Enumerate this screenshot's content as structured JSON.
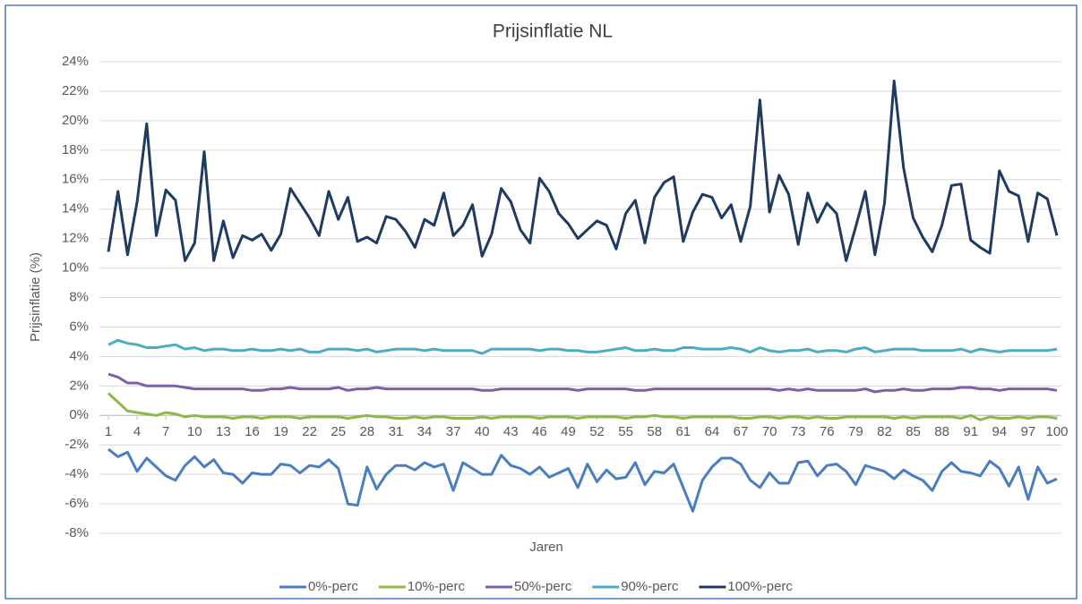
{
  "chart_data": {
    "type": "line",
    "title": "Prijsinflatie NL",
    "x_label": "Jaren",
    "y_label": "Prijsinflatie (%)",
    "x": [
      1,
      2,
      3,
      4,
      5,
      6,
      7,
      8,
      9,
      10,
      11,
      12,
      13,
      14,
      15,
      16,
      17,
      18,
      19,
      20,
      21,
      22,
      23,
      24,
      25,
      26,
      27,
      28,
      29,
      30,
      31,
      32,
      33,
      34,
      35,
      36,
      37,
      38,
      39,
      40,
      41,
      42,
      43,
      44,
      45,
      46,
      47,
      48,
      49,
      50,
      51,
      52,
      53,
      54,
      55,
      56,
      57,
      58,
      59,
      60,
      61,
      62,
      63,
      64,
      65,
      66,
      67,
      68,
      69,
      70,
      71,
      72,
      73,
      74,
      75,
      76,
      77,
      78,
      79,
      80,
      81,
      82,
      83,
      84,
      85,
      86,
      87,
      88,
      89,
      90,
      91,
      92,
      93,
      94,
      95,
      96,
      97,
      98,
      99,
      100
    ],
    "xlim": [
      1,
      100
    ],
    "xticks": [
      1,
      4,
      7,
      10,
      13,
      16,
      19,
      22,
      25,
      28,
      31,
      34,
      37,
      40,
      43,
      46,
      49,
      52,
      55,
      58,
      61,
      64,
      67,
      70,
      73,
      76,
      79,
      82,
      85,
      88,
      91,
      94,
      97,
      100
    ],
    "ylim": [
      -8,
      24
    ],
    "yticks": [
      {
        "value": -8,
        "label": "-8%"
      },
      {
        "value": -6,
        "label": "-6%"
      },
      {
        "value": -4,
        "label": "-4%"
      },
      {
        "value": -2,
        "label": "-2%"
      },
      {
        "value": 0,
        "label": "0%"
      },
      {
        "value": 2,
        "label": "2%"
      },
      {
        "value": 4,
        "label": "4%"
      },
      {
        "value": 6,
        "label": "6%"
      },
      {
        "value": 8,
        "label": "8%"
      },
      {
        "value": 10,
        "label": "10%"
      },
      {
        "value": 12,
        "label": "12%"
      },
      {
        "value": 14,
        "label": "14%"
      },
      {
        "value": 16,
        "label": "16%"
      },
      {
        "value": 18,
        "label": "18%"
      },
      {
        "value": 20,
        "label": "20%"
      },
      {
        "value": 22,
        "label": "22%"
      },
      {
        "value": 24,
        "label": "24%"
      }
    ],
    "grid": true,
    "legend": "bottom",
    "series": [
      {
        "name": "0%-perc",
        "color": "#4a7ebf",
        "values": [
          -2.3,
          -2.8,
          -2.5,
          -3.8,
          -2.9,
          -3.5,
          -4.1,
          -4.4,
          -3.4,
          -2.8,
          -3.5,
          -3.0,
          -3.9,
          -4.0,
          -4.6,
          -3.9,
          -4.0,
          -4.0,
          -3.3,
          -3.4,
          -3.9,
          -3.4,
          -3.5,
          -3.0,
          -3.6,
          -6.0,
          -6.1,
          -3.5,
          -5.0,
          -4.0,
          -3.4,
          -3.4,
          -3.7,
          -3.2,
          -3.5,
          -3.3,
          -5.1,
          -3.2,
          -3.6,
          -4.0,
          -4.0,
          -2.7,
          -3.4,
          -3.6,
          -4.0,
          -3.5,
          -4.2,
          -3.9,
          -3.6,
          -4.9,
          -3.3,
          -4.5,
          -3.7,
          -4.3,
          -4.2,
          -3.2,
          -4.7,
          -3.8,
          -3.9,
          -3.3,
          -4.9,
          -6.5,
          -4.4,
          -3.5,
          -2.9,
          -2.9,
          -3.3,
          -4.4,
          -4.9,
          -3.9,
          -4.6,
          -4.6,
          -3.2,
          -3.1,
          -4.1,
          -3.4,
          -3.3,
          -3.8,
          -4.7,
          -3.4,
          -3.6,
          -3.8,
          -4.3,
          -3.7,
          -4.1,
          -4.4,
          -5.1,
          -3.8,
          -3.2,
          -3.8,
          -3.9,
          -4.1,
          -3.1,
          -3.6,
          -4.8,
          -3.5,
          -5.7,
          -3.5,
          -4.6,
          -4.3
        ]
      },
      {
        "name": "10%-perc",
        "color": "#8cb84c",
        "values": [
          1.5,
          0.9,
          0.3,
          0.2,
          0.1,
          0.0,
          0.2,
          0.1,
          -0.1,
          0.0,
          -0.1,
          -0.1,
          -0.1,
          -0.2,
          -0.1,
          -0.1,
          -0.2,
          -0.1,
          -0.1,
          -0.1,
          -0.2,
          -0.1,
          -0.1,
          -0.1,
          -0.1,
          -0.2,
          -0.1,
          0.0,
          -0.1,
          -0.1,
          -0.2,
          -0.2,
          -0.1,
          -0.2,
          -0.1,
          -0.1,
          -0.2,
          -0.2,
          -0.2,
          -0.1,
          -0.2,
          -0.1,
          -0.1,
          -0.1,
          -0.1,
          -0.2,
          -0.1,
          -0.1,
          -0.1,
          -0.2,
          -0.1,
          -0.1,
          -0.1,
          -0.1,
          -0.2,
          -0.1,
          -0.1,
          0.0,
          -0.1,
          -0.1,
          -0.2,
          -0.1,
          -0.1,
          -0.1,
          -0.1,
          -0.1,
          -0.2,
          -0.2,
          -0.1,
          -0.1,
          -0.2,
          -0.1,
          -0.1,
          -0.2,
          -0.1,
          -0.2,
          -0.2,
          -0.1,
          -0.1,
          -0.1,
          -0.1,
          -0.1,
          -0.2,
          -0.1,
          -0.2,
          -0.1,
          -0.1,
          -0.1,
          -0.1,
          -0.2,
          0.0,
          -0.3,
          -0.1,
          -0.2,
          -0.2,
          -0.1,
          -0.2,
          -0.1,
          -0.1,
          -0.2
        ]
      },
      {
        "name": "50%-perc",
        "color": "#7d5ea8",
        "values": [
          2.8,
          2.6,
          2.2,
          2.2,
          2.0,
          2.0,
          2.0,
          2.0,
          1.9,
          1.8,
          1.8,
          1.8,
          1.8,
          1.8,
          1.8,
          1.7,
          1.7,
          1.8,
          1.8,
          1.9,
          1.8,
          1.8,
          1.8,
          1.8,
          1.9,
          1.7,
          1.8,
          1.8,
          1.9,
          1.8,
          1.8,
          1.8,
          1.8,
          1.8,
          1.8,
          1.8,
          1.8,
          1.8,
          1.8,
          1.7,
          1.7,
          1.8,
          1.8,
          1.8,
          1.8,
          1.8,
          1.8,
          1.8,
          1.8,
          1.7,
          1.8,
          1.8,
          1.8,
          1.8,
          1.8,
          1.7,
          1.7,
          1.8,
          1.8,
          1.8,
          1.8,
          1.8,
          1.8,
          1.8,
          1.8,
          1.8,
          1.8,
          1.8,
          1.8,
          1.8,
          1.7,
          1.8,
          1.7,
          1.8,
          1.7,
          1.7,
          1.7,
          1.7,
          1.7,
          1.8,
          1.6,
          1.7,
          1.7,
          1.8,
          1.7,
          1.7,
          1.8,
          1.8,
          1.8,
          1.9,
          1.9,
          1.8,
          1.8,
          1.7,
          1.8,
          1.8,
          1.8,
          1.8,
          1.8,
          1.7
        ]
      },
      {
        "name": "90%-perc",
        "color": "#4bacc6",
        "values": [
          4.8,
          5.1,
          4.9,
          4.8,
          4.6,
          4.6,
          4.7,
          4.8,
          4.5,
          4.6,
          4.4,
          4.5,
          4.5,
          4.4,
          4.4,
          4.5,
          4.4,
          4.4,
          4.5,
          4.4,
          4.5,
          4.3,
          4.3,
          4.5,
          4.5,
          4.5,
          4.4,
          4.5,
          4.3,
          4.4,
          4.5,
          4.5,
          4.5,
          4.4,
          4.5,
          4.4,
          4.4,
          4.4,
          4.4,
          4.2,
          4.5,
          4.5,
          4.5,
          4.5,
          4.5,
          4.4,
          4.5,
          4.5,
          4.4,
          4.4,
          4.3,
          4.3,
          4.4,
          4.5,
          4.6,
          4.4,
          4.4,
          4.5,
          4.4,
          4.4,
          4.6,
          4.6,
          4.5,
          4.5,
          4.5,
          4.6,
          4.5,
          4.3,
          4.6,
          4.4,
          4.3,
          4.4,
          4.4,
          4.5,
          4.3,
          4.4,
          4.4,
          4.3,
          4.5,
          4.6,
          4.3,
          4.4,
          4.5,
          4.5,
          4.5,
          4.4,
          4.4,
          4.4,
          4.4,
          4.5,
          4.3,
          4.5,
          4.4,
          4.3,
          4.4,
          4.4,
          4.4,
          4.4,
          4.4,
          4.5
        ]
      },
      {
        "name": "100%-perc",
        "color": "#1f3b60",
        "values": [
          11.1,
          15.2,
          10.9,
          14.5,
          19.8,
          12.2,
          15.3,
          14.6,
          10.5,
          11.7,
          17.9,
          10.5,
          13.2,
          10.7,
          12.2,
          11.9,
          12.3,
          11.2,
          12.3,
          15.4,
          14.4,
          13.4,
          12.2,
          15.2,
          13.3,
          14.8,
          11.8,
          12.1,
          11.7,
          13.5,
          13.3,
          12.5,
          11.4,
          13.3,
          12.9,
          15.1,
          12.2,
          12.9,
          14.3,
          10.8,
          12.3,
          15.4,
          14.5,
          12.6,
          11.7,
          16.1,
          15.2,
          13.7,
          13.0,
          12.0,
          12.6,
          13.2,
          12.9,
          11.3,
          13.7,
          14.6,
          11.7,
          14.8,
          15.8,
          16.2,
          11.8,
          13.8,
          15.0,
          14.8,
          13.4,
          14.3,
          11.8,
          14.2,
          21.4,
          13.8,
          16.3,
          15.0,
          11.6,
          15.1,
          13.1,
          14.4,
          13.7,
          10.5,
          12.8,
          15.2,
          10.9,
          14.4,
          22.7,
          16.8,
          13.4,
          12.1,
          11.1,
          12.9,
          15.6,
          15.7,
          11.9,
          11.4,
          11.0,
          16.6,
          15.2,
          14.9,
          11.8,
          15.1,
          14.7,
          12.2
        ]
      }
    ]
  }
}
